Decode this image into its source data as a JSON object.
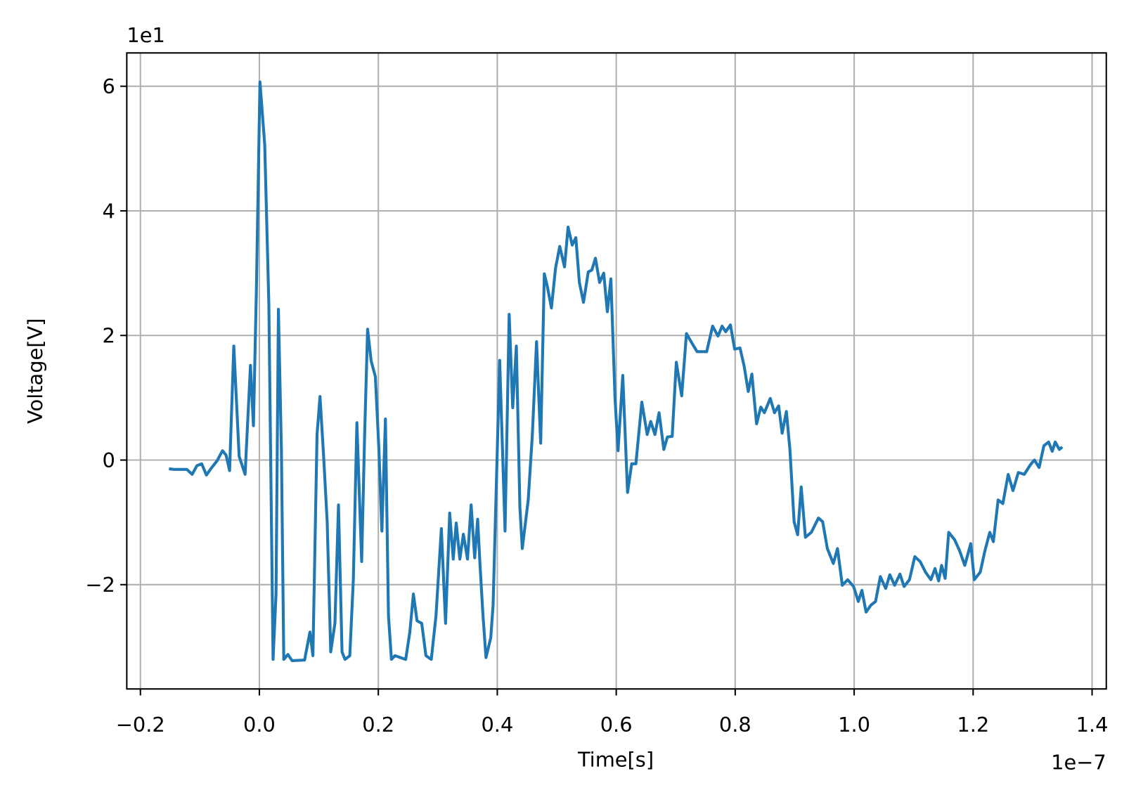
{
  "chart_data": {
    "type": "line",
    "xlabel": "Time[s]",
    "ylabel": "Voltage[V]",
    "x_offset_label": "1e−7",
    "y_offset_label": "1e1",
    "color": "#1f77b4",
    "grid": true,
    "xlim": [
      -0.2229,
      1.4239
    ],
    "ylim": [
      -3.674,
      6.535
    ],
    "xticks": [
      {
        "value": -0.2,
        "label": "−0.2"
      },
      {
        "value": 0,
        "label": "0.0"
      },
      0.2,
      0.4,
      0.6,
      0.8,
      {
        "value": 1,
        "label": "1.0"
      },
      1.2,
      1.4
    ],
    "yticks": [
      {
        "value": -2,
        "label": "−2"
      },
      0,
      2,
      4,
      6
    ],
    "x": [
      -0.152,
      -0.144,
      -0.122,
      -0.113,
      -0.105,
      -0.097,
      -0.089,
      -0.08,
      -0.071,
      -0.062,
      -0.056,
      -0.05,
      -0.043,
      -0.034,
      -0.024,
      -0.015,
      -0.01,
      -0.005,
      0.001,
      0.009,
      0.016,
      0.023,
      0.028,
      0.032,
      0.037,
      0.041,
      0.048,
      0.055,
      0.076,
      0.085,
      0.09,
      0.097,
      0.102,
      0.108,
      0.114,
      0.12,
      0.127,
      0.133,
      0.139,
      0.144,
      0.152,
      0.158,
      0.164,
      0.172,
      0.177,
      0.182,
      0.188,
      0.195,
      0.201,
      0.206,
      0.212,
      0.217,
      0.222,
      0.228,
      0.246,
      0.253,
      0.259,
      0.265,
      0.273,
      0.28,
      0.289,
      0.297,
      0.306,
      0.313,
      0.32,
      0.326,
      0.331,
      0.337,
      0.343,
      0.35,
      0.356,
      0.362,
      0.367,
      0.371,
      0.376,
      0.381,
      0.389,
      0.393,
      0.4,
      0.404,
      0.413,
      0.42,
      0.426,
      0.432,
      0.438,
      0.442,
      0.452,
      0.459,
      0.466,
      0.473,
      0.479,
      0.484,
      0.491,
      0.498,
      0.505,
      0.513,
      0.519,
      0.526,
      0.532,
      0.538,
      0.545,
      0.553,
      0.559,
      0.565,
      0.572,
      0.579,
      0.585,
      0.591,
      0.598,
      0.603,
      0.611,
      0.619,
      0.626,
      0.633,
      0.643,
      0.652,
      0.658,
      0.665,
      0.672,
      0.68,
      0.686,
      0.694,
      0.701,
      0.71,
      0.718,
      0.727,
      0.736,
      0.752,
      0.762,
      0.771,
      0.778,
      0.784,
      0.792,
      0.799,
      0.808,
      0.815,
      0.822,
      0.828,
      0.836,
      0.843,
      0.849,
      0.859,
      0.866,
      0.873,
      0.879,
      0.886,
      0.892,
      0.899,
      0.905,
      0.911,
      0.918,
      0.928,
      0.94,
      0.947,
      0.955,
      0.965,
      0.972,
      0.98,
      0.989,
      0.999,
      1.007,
      1.013,
      1.02,
      1.028,
      1.036,
      1.044,
      1.053,
      1.06,
      1.068,
      1.077,
      1.084,
      1.093,
      1.102,
      1.111,
      1.12,
      1.129,
      1.136,
      1.142,
      1.147,
      1.153,
      1.159,
      1.169,
      1.177,
      1.186,
      1.196,
      1.202,
      1.212,
      1.22,
      1.228,
      1.234,
      1.242,
      1.25,
      1.259,
      1.267,
      1.276,
      1.286,
      1.296,
      1.303,
      1.311,
      1.319,
      1.327,
      1.333,
      1.338,
      1.345,
      1.35
    ],
    "values": [
      -0.14,
      -0.15,
      -0.15,
      -0.23,
      -0.09,
      -0.06,
      -0.24,
      -0.12,
      -0.01,
      0.15,
      0.08,
      -0.17,
      1.83,
      0.06,
      -0.23,
      1.52,
      0.55,
      2.73,
      6.07,
      5.06,
      2.5,
      -3.2,
      -2.15,
      2.42,
      0.17,
      -3.2,
      -3.12,
      -3.22,
      -3.21,
      -2.76,
      -3.14,
      0.41,
      1.02,
      0.06,
      -0.99,
      -3.08,
      -2.62,
      -0.72,
      -3.08,
      -3.2,
      -3.14,
      -1.92,
      0.6,
      -1.63,
      0.41,
      2.1,
      1.59,
      1.34,
      0.17,
      -1.14,
      0.66,
      -2.5,
      -3.2,
      -3.14,
      -3.2,
      -2.76,
      -2.15,
      -2.58,
      -2.62,
      -3.14,
      -3.2,
      -2.5,
      -1.1,
      -2.62,
      -0.85,
      -1.59,
      -1.01,
      -1.59,
      -1.19,
      -1.59,
      -0.72,
      -1.57,
      -0.95,
      -1.69,
      -2.5,
      -3.17,
      -2.85,
      -2.33,
      0.17,
      1.6,
      -1.14,
      2.34,
      0.84,
      1.83,
      -0.76,
      -1.42,
      -0.64,
      0.41,
      1.9,
      0.27,
      2.99,
      2.79,
      2.44,
      3.08,
      3.43,
      3.1,
      3.74,
      3.45,
      3.57,
      2.85,
      2.53,
      3.02,
      3.05,
      3.24,
      2.85,
      3.0,
      2.38,
      2.91,
      0.99,
      0.15,
      1.36,
      -0.52,
      -0.06,
      -0.06,
      0.93,
      0.41,
      0.62,
      0.41,
      0.76,
      0.17,
      0.37,
      0.38,
      1.57,
      1.03,
      2.03,
      1.88,
      1.74,
      1.74,
      2.15,
      1.99,
      2.15,
      2.06,
      2.17,
      1.78,
      1.8,
      1.51,
      1.1,
      1.38,
      0.58,
      0.85,
      0.76,
      0.99,
      0.76,
      0.87,
      0.43,
      0.78,
      0.17,
      -0.99,
      -1.2,
      -0.43,
      -1.24,
      -1.16,
      -0.93,
      -0.99,
      -1.42,
      -1.66,
      -1.42,
      -2.01,
      -1.92,
      -2.03,
      -2.27,
      -2.09,
      -2.44,
      -2.33,
      -2.27,
      -1.87,
      -2.06,
      -1.84,
      -2.01,
      -1.83,
      -2.03,
      -1.92,
      -1.55,
      -1.63,
      -1.8,
      -1.92,
      -1.74,
      -1.94,
      -1.69,
      -1.9,
      -1.16,
      -1.28,
      -1.45,
      -1.69,
      -1.34,
      -1.92,
      -1.8,
      -1.45,
      -1.16,
      -1.31,
      -0.64,
      -0.7,
      -0.23,
      -0.49,
      -0.2,
      -0.23,
      -0.08,
      0.0,
      -0.12,
      0.23,
      0.29,
      0.14,
      0.29,
      0.17,
      0.21
    ]
  }
}
